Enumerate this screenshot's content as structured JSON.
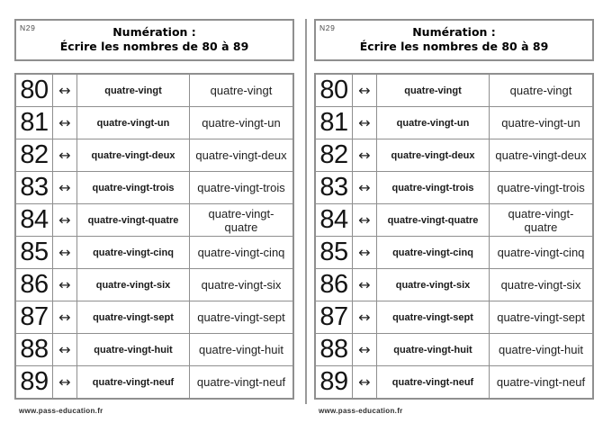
{
  "panel": {
    "code": "N29",
    "title": {
      "line1": "Numération :",
      "line2": "Écrire les nombres de 80 à 89"
    },
    "arrow_symbol": "↔",
    "rows": [
      {
        "number": "80",
        "word_bold": "quatre-vingt",
        "word_plain": "quatre-vingt"
      },
      {
        "number": "81",
        "word_bold": "quatre-vingt-un",
        "word_plain": "quatre-vingt-un"
      },
      {
        "number": "82",
        "word_bold": "quatre-vingt-deux",
        "word_plain": "quatre-vingt-deux"
      },
      {
        "number": "83",
        "word_bold": "quatre-vingt-trois",
        "word_plain": "quatre-vingt-trois"
      },
      {
        "number": "84",
        "word_bold": "quatre-vingt-quatre",
        "word_plain": "quatre-vingt-\nquatre"
      },
      {
        "number": "85",
        "word_bold": "quatre-vingt-cinq",
        "word_plain": "quatre-vingt-cinq"
      },
      {
        "number": "86",
        "word_bold": "quatre-vingt-six",
        "word_plain": "quatre-vingt-six"
      },
      {
        "number": "87",
        "word_bold": "quatre-vingt-sept",
        "word_plain": "quatre-vingt-sept"
      },
      {
        "number": "88",
        "word_bold": "quatre-vingt-huit",
        "word_plain": "quatre-vingt-huit"
      },
      {
        "number": "89",
        "word_bold": "quatre-vingt-neuf",
        "word_plain": "quatre-vingt-neuf"
      }
    ],
    "footer": "www.pass-education.fr"
  },
  "colors": {
    "border": "#8f8f8f",
    "divider": "#9a9a9a",
    "text": "#111111",
    "background": "#ffffff"
  }
}
